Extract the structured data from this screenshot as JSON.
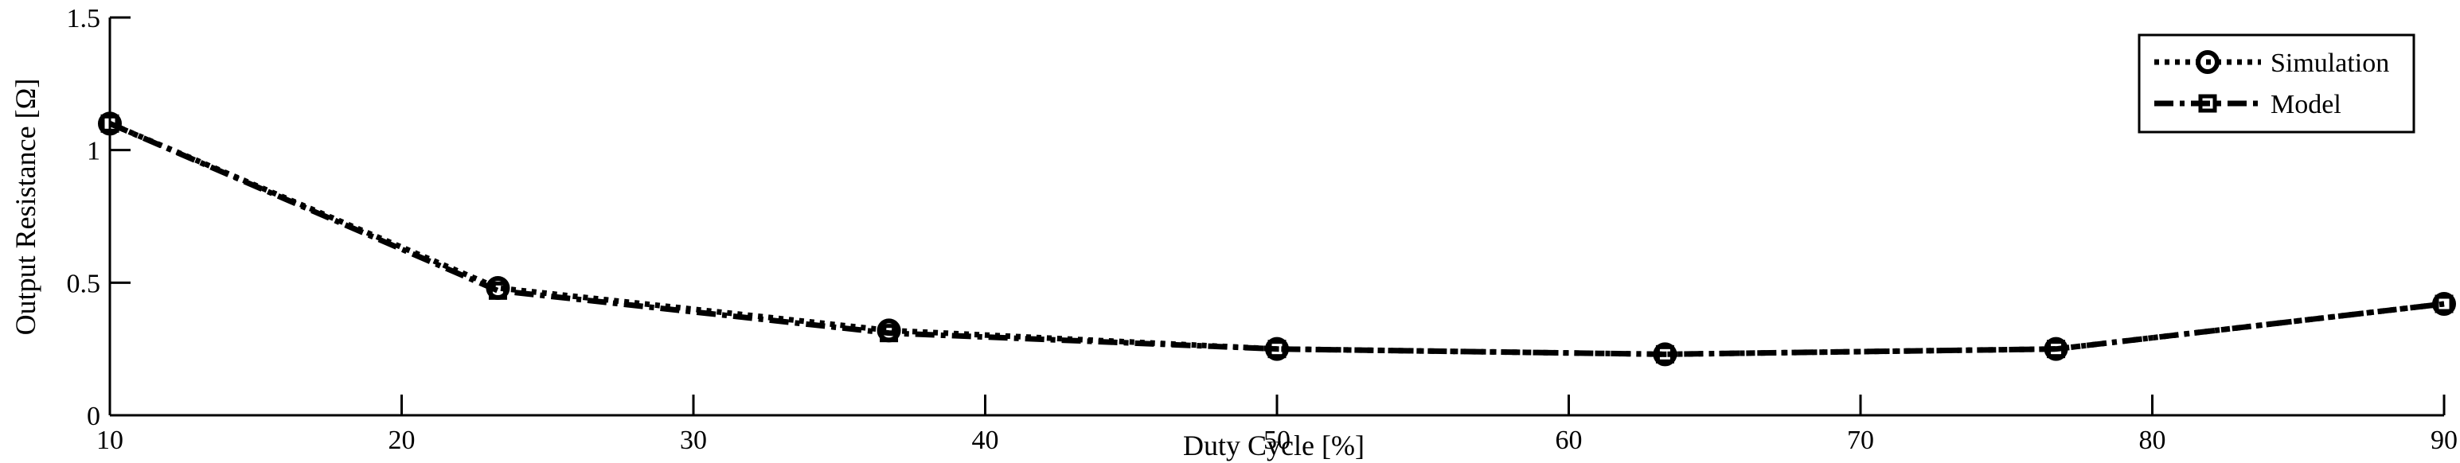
{
  "chart_data": {
    "type": "line",
    "title": "",
    "xlabel": "Duty Cycle [%]",
    "ylabel": "Output Resistance [Ω]",
    "xlim": [
      10,
      90
    ],
    "ylim": [
      0,
      1.5
    ],
    "xticks": [
      10,
      20,
      30,
      40,
      50,
      60,
      70,
      80,
      90
    ],
    "yticks": [
      0,
      0.5,
      1,
      1.5
    ],
    "ytick_labels": [
      "0",
      "0.5",
      "1",
      "1.5"
    ],
    "grid": false,
    "legend_position": "top-right",
    "series": [
      {
        "name": "Simulation",
        "marker": "circle",
        "line_style": "dotted",
        "x": [
          10,
          23.3,
          36.7,
          50,
          63.3,
          76.7,
          90
        ],
        "y": [
          1.1,
          0.48,
          0.32,
          0.25,
          0.23,
          0.25,
          0.42
        ]
      },
      {
        "name": "Model",
        "marker": "square",
        "line_style": "dash-dot",
        "x": [
          10,
          23.3,
          36.7,
          50,
          63.3,
          76.7,
          90
        ],
        "y": [
          1.1,
          0.47,
          0.31,
          0.25,
          0.23,
          0.25,
          0.42
        ]
      }
    ]
  }
}
